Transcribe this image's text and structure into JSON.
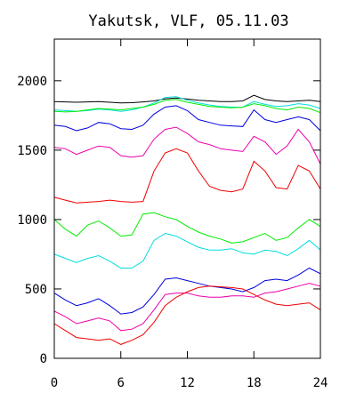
{
  "chart_data": {
    "type": "line",
    "title": "Yakutsk, VLF, 05.11.03",
    "xlabel": "",
    "ylabel": "",
    "xlim": [
      0,
      24
    ],
    "ylim": [
      0,
      2300
    ],
    "x_ticks": [
      0,
      6,
      12,
      18,
      24
    ],
    "y_ticks": [
      0,
      500,
      1000,
      1500,
      2000
    ],
    "x": [
      0,
      1,
      2,
      3,
      4,
      5,
      6,
      7,
      8,
      9,
      10,
      11,
      12,
      13,
      14,
      15,
      16,
      17,
      18,
      19,
      20,
      21,
      22,
      23,
      24
    ],
    "series": [
      {
        "color": "#000000",
        "values": [
          1850,
          1848,
          1845,
          1848,
          1850,
          1845,
          1840,
          1842,
          1848,
          1855,
          1870,
          1875,
          1868,
          1860,
          1855,
          1850,
          1850,
          1855,
          1895,
          1865,
          1855,
          1850,
          1855,
          1860,
          1850
        ]
      },
      {
        "color": "#00dddd",
        "values": [
          1790,
          1785,
          1780,
          1785,
          1795,
          1790,
          1780,
          1790,
          1810,
          1840,
          1880,
          1885,
          1860,
          1840,
          1825,
          1815,
          1810,
          1810,
          1850,
          1830,
          1815,
          1820,
          1835,
          1825,
          1800
        ]
      },
      {
        "color": "#00ee00",
        "values": [
          1780,
          1775,
          1780,
          1790,
          1800,
          1795,
          1790,
          1800,
          1810,
          1830,
          1860,
          1865,
          1845,
          1830,
          1815,
          1810,
          1805,
          1810,
          1835,
          1820,
          1800,
          1790,
          1810,
          1800,
          1770
        ]
      },
      {
        "color": "#0000dd",
        "values": [
          1680,
          1670,
          1640,
          1660,
          1700,
          1690,
          1655,
          1650,
          1680,
          1760,
          1810,
          1820,
          1785,
          1720,
          1700,
          1680,
          1675,
          1670,
          1790,
          1720,
          1700,
          1720,
          1740,
          1720,
          1640
        ]
      },
      {
        "color": "#ee00aa",
        "values": [
          1520,
          1510,
          1470,
          1500,
          1530,
          1520,
          1460,
          1450,
          1460,
          1580,
          1650,
          1665,
          1620,
          1560,
          1540,
          1510,
          1500,
          1490,
          1600,
          1560,
          1470,
          1530,
          1650,
          1560,
          1400
        ]
      },
      {
        "color": "#ee0000",
        "values": [
          1160,
          1140,
          1120,
          1125,
          1130,
          1140,
          1130,
          1125,
          1130,
          1350,
          1480,
          1510,
          1480,
          1350,
          1240,
          1210,
          1200,
          1220,
          1420,
          1350,
          1230,
          1220,
          1390,
          1350,
          1220
        ]
      },
      {
        "color": "#00ee00",
        "values": [
          1000,
          930,
          880,
          960,
          990,
          940,
          880,
          890,
          1040,
          1050,
          1020,
          1000,
          950,
          910,
          880,
          860,
          830,
          840,
          870,
          900,
          850,
          870,
          940,
          1000,
          950
        ]
      },
      {
        "color": "#00dddd",
        "values": [
          750,
          720,
          690,
          720,
          740,
          700,
          650,
          650,
          700,
          850,
          900,
          880,
          840,
          800,
          780,
          780,
          790,
          760,
          750,
          780,
          770,
          740,
          790,
          850,
          780
        ]
      },
      {
        "color": "#0000dd",
        "values": [
          470,
          420,
          380,
          400,
          430,
          380,
          320,
          330,
          370,
          460,
          570,
          580,
          560,
          540,
          520,
          510,
          500,
          480,
          510,
          560,
          570,
          560,
          600,
          650,
          610
        ]
      },
      {
        "color": "#ee00aa",
        "values": [
          340,
          300,
          250,
          270,
          290,
          270,
          200,
          210,
          250,
          350,
          460,
          470,
          470,
          450,
          440,
          440,
          450,
          450,
          440,
          470,
          480,
          500,
          520,
          540,
          520
        ]
      },
      {
        "color": "#ee0000",
        "values": [
          250,
          200,
          150,
          140,
          130,
          140,
          100,
          130,
          170,
          260,
          380,
          440,
          480,
          510,
          520,
          515,
          510,
          500,
          460,
          420,
          390,
          380,
          390,
          400,
          350
        ]
      }
    ]
  }
}
